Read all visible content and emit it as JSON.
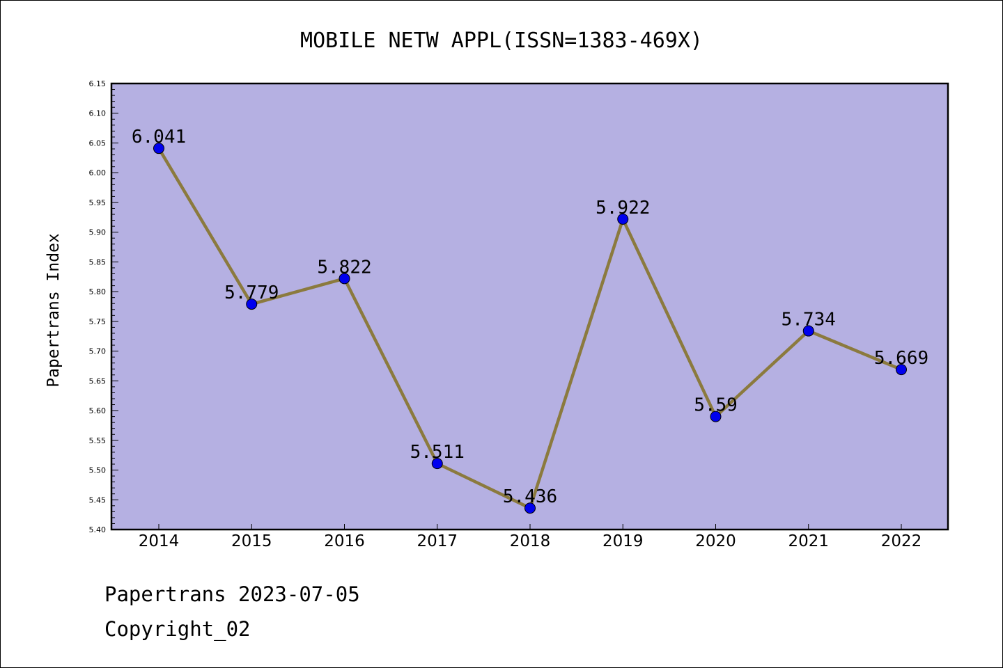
{
  "chart_data": {
    "type": "line",
    "title": "MOBILE NETW APPL(ISSN=1383-469X)",
    "xlabel": "",
    "ylabel": "Papertrans Index",
    "categories": [
      "2014",
      "2015",
      "2016",
      "2017",
      "2018",
      "2019",
      "2020",
      "2021",
      "2022"
    ],
    "series": [
      {
        "values": [
          6.041,
          5.779,
          5.822,
          5.511,
          5.436,
          5.922,
          5.59,
          5.734,
          5.669
        ],
        "labels": [
          "6.041",
          "5.779",
          "5.822",
          "5.511",
          "5.436",
          "5.922",
          "5.59",
          "5.734",
          "5.669"
        ]
      }
    ],
    "ylim": [
      5.4,
      6.15
    ],
    "yticks": [
      "5.40",
      "5.45",
      "5.50",
      "5.55",
      "5.60",
      "5.65",
      "5.70",
      "5.75",
      "5.80",
      "5.85",
      "5.90",
      "5.95",
      "6.00",
      "6.05",
      "6.10",
      "6.15"
    ],
    "grid": false,
    "legend": "none",
    "colors": {
      "plot_background": "#b5b0e2",
      "line": "#8b7a3e",
      "marker": "#0000ee"
    }
  },
  "footer": {
    "line1": "Papertrans 2023-07-05",
    "line2": "Copyright_02"
  }
}
